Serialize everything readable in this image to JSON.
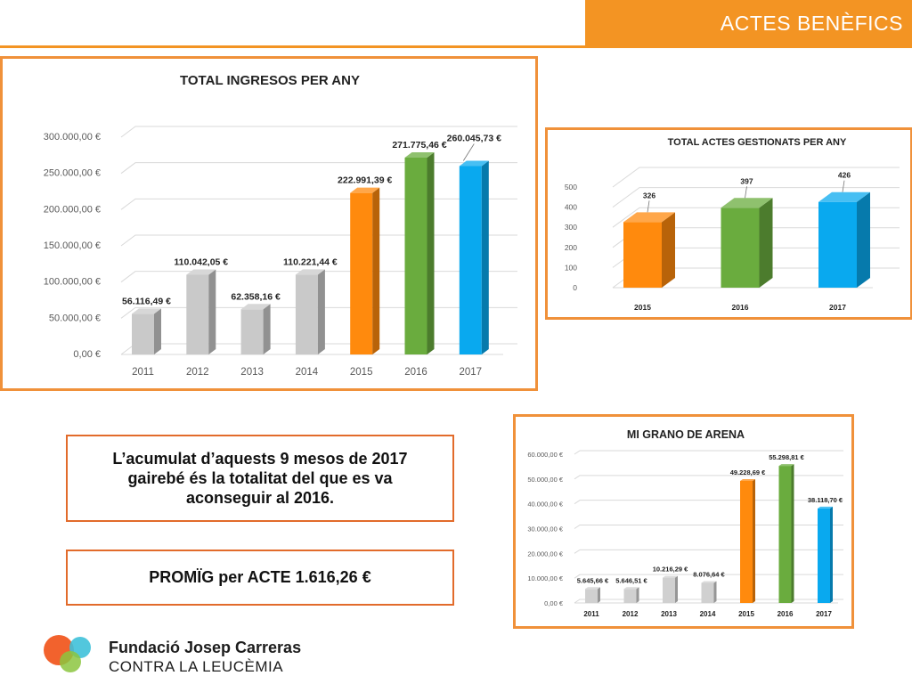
{
  "header": {
    "title": "ACTES BENÈFICS",
    "accent": "#f39423"
  },
  "notes": {
    "cumulative": "L’acumulat d’aquests 9 mesos de 2017 gairebé és la totalitat del que es va aconseguir al 2016.",
    "average": "PROMÏG per ACTE 1.616,26 €"
  },
  "organization": {
    "name": "Fundació Josep Carreras",
    "subtitle": "CONTRA LA LEUCÈMIA"
  },
  "chart_data": [
    {
      "type": "bar",
      "title": "TOTAL INGRESOS PER ANY",
      "categories": [
        "2011",
        "2012",
        "2013",
        "2014",
        "2015",
        "2016",
        "2017"
      ],
      "values": [
        56116.49,
        110042.05,
        62358.16,
        110221.44,
        222991.39,
        271775.46,
        260045.73
      ],
      "value_labels": [
        "56.116,49 €",
        "110.042,05 €",
        "62.358,16 €",
        "110.221,44 €",
        "222.991,39 €",
        "271.775,46 €",
        "260.045,73 €"
      ],
      "y_ticks": [
        "0,00 €",
        "50.000,00 €",
        "100.000,00 €",
        "150.000,00 €",
        "200.000,00 €",
        "250.000,00 €",
        "300.000,00 €"
      ],
      "ylim": [
        0,
        300000
      ],
      "colors": [
        "#c9c9c9",
        "#c9c9c9",
        "#c9c9c9",
        "#c9c9c9",
        "#ff8a0d",
        "#6aac3e",
        "#09a9ef"
      ],
      "grid": true
    },
    {
      "type": "bar",
      "title": "TOTAL ACTES GESTIONATS PER ANY",
      "categories": [
        "2015",
        "2016",
        "2017"
      ],
      "values": [
        326,
        397,
        426
      ],
      "value_labels": [
        "326",
        "397",
        "426"
      ],
      "y_ticks": [
        "0",
        "100",
        "200",
        "300",
        "400",
        "500"
      ],
      "ylim": [
        0,
        500
      ],
      "colors": [
        "#ff8a0d",
        "#6aac3e",
        "#09a9ef"
      ],
      "grid": true
    },
    {
      "type": "bar",
      "title": "MI GRANO DE ARENA",
      "categories": [
        "2011",
        "2012",
        "2013",
        "2014",
        "2015",
        "2016",
        "2017"
      ],
      "values": [
        5645.66,
        5646.51,
        10216.29,
        8076.64,
        49228.69,
        55298.81,
        38118.7
      ],
      "value_labels": [
        "5.645,66 €",
        "5.646,51 €",
        "10.216,29 €",
        "8.076,64 €",
        "49.228,69 €",
        "55.298,81 €",
        "38.118,70 €"
      ],
      "y_ticks": [
        "0,00 €",
        "10.000,00 €",
        "20.000,00 €",
        "30.000,00 €",
        "40.000,00 €",
        "50.000,00 €",
        "60.000,00 €"
      ],
      "ylim": [
        0,
        60000
      ],
      "colors": [
        "#d0d0d0",
        "#d0d0d0",
        "#d0d0d0",
        "#d0d0d0",
        "#ff8a0d",
        "#6aac3e",
        "#09a9ef"
      ],
      "grid": true
    }
  ]
}
